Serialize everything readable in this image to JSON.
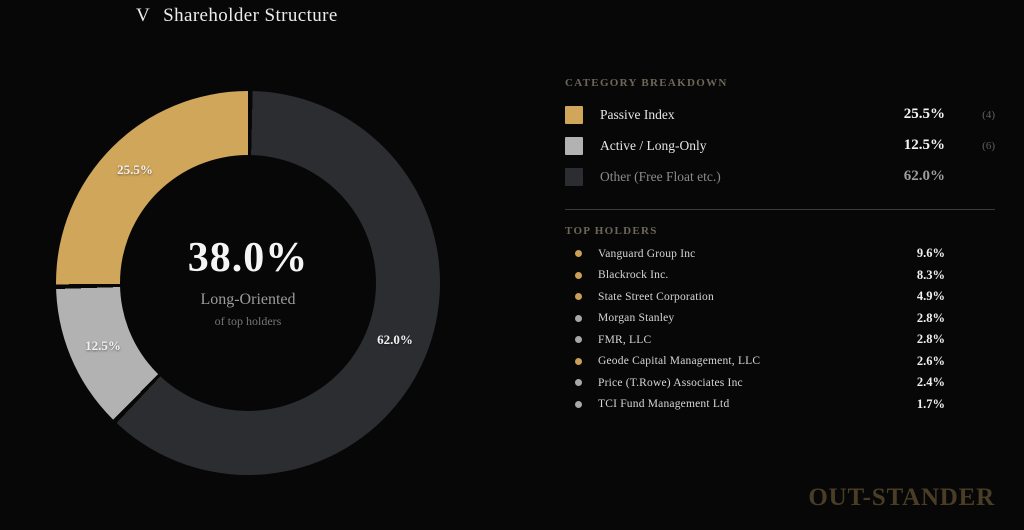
{
  "title": {
    "ticker": "V",
    "text": "Shareholder Structure"
  },
  "colors": {
    "background": "#070707",
    "gold": "#d0a65a",
    "light_gray": "#b2b2b2",
    "dark_gray": "#2b2d30",
    "brand": "#4a3d25"
  },
  "chart_data": {
    "type": "pie",
    "donut": true,
    "title": "Shareholder Structure",
    "legend_position": "right",
    "center": {
      "value": "38.0%",
      "label": "Long-Oriented",
      "sublabel": "of top holders"
    },
    "segments": [
      {
        "label": "Passive Index",
        "value": 25.5,
        "display": "25.5%",
        "color": "#d0a65a",
        "count": "(4)"
      },
      {
        "label": "Active / Long-Only",
        "value": 12.5,
        "display": "12.5%",
        "color": "#b2b2b2",
        "count": "(6)"
      },
      {
        "label": "Other (Free Float etc.)",
        "value": 62.0,
        "display": "62.0%",
        "color": "#2b2d30",
        "count": ""
      }
    ]
  },
  "category_breakdown": {
    "header": "CATEGORY BREAKDOWN"
  },
  "top_holders": {
    "header": "TOP HOLDERS",
    "rows": [
      {
        "name": "Vanguard Group Inc",
        "value": "9.6%",
        "dot_color": "#c9a054"
      },
      {
        "name": "Blackrock Inc.",
        "value": "8.3%",
        "dot_color": "#c9a054"
      },
      {
        "name": "State Street Corporation",
        "value": "4.9%",
        "dot_color": "#c9a054"
      },
      {
        "name": "Morgan Stanley",
        "value": "2.8%",
        "dot_color": "#a8a8a8"
      },
      {
        "name": "FMR, LLC",
        "value": "2.8%",
        "dot_color": "#a8a8a8"
      },
      {
        "name": "Geode Capital Management, LLC",
        "value": "2.6%",
        "dot_color": "#c9a054"
      },
      {
        "name": "Price (T.Rowe) Associates Inc",
        "value": "2.4%",
        "dot_color": "#a8a8a8"
      },
      {
        "name": "TCI Fund Management Ltd",
        "value": "1.7%",
        "dot_color": "#a8a8a8"
      }
    ]
  },
  "footer": {
    "brand": "OUT-STANDER"
  }
}
